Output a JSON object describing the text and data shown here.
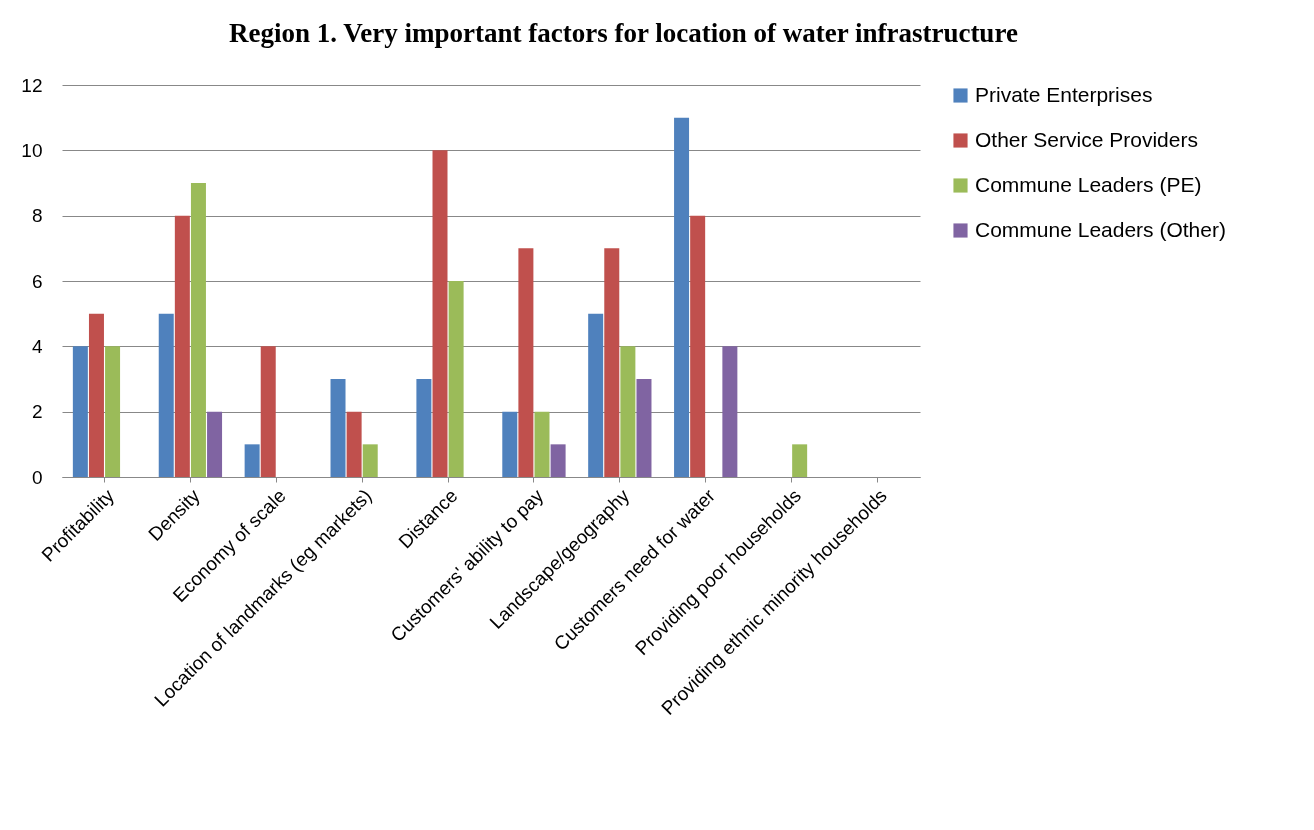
{
  "chart_data": {
    "type": "bar",
    "title": "Region 1. Very important factors for location of water infrastructure",
    "categories": [
      "Profitability",
      "Density",
      "Economy of scale",
      "Location of landmarks (eg markets)",
      "Distance",
      "Customers' ability to pay",
      "Landscape/geography",
      "Customers need for water",
      "Providing poor households",
      "Providing ethnic minority households"
    ],
    "series": [
      {
        "name": "Private Enterprises",
        "color": "#4f81bd",
        "values": [
          4,
          5,
          1,
          3,
          3,
          2,
          5,
          11,
          0,
          0
        ]
      },
      {
        "name": "Other Service Providers",
        "color": "#c0504d",
        "values": [
          5,
          8,
          4,
          2,
          10,
          7,
          7,
          8,
          0,
          0
        ]
      },
      {
        "name": "Commune Leaders (PE)",
        "color": "#9bbb59",
        "values": [
          4,
          9,
          0,
          1,
          6,
          2,
          4,
          0,
          1,
          0
        ]
      },
      {
        "name": "Commune Leaders (Other)",
        "color": "#8064a2",
        "values": [
          0,
          2,
          0,
          0,
          0,
          1,
          3,
          4,
          0,
          0
        ]
      }
    ],
    "ylim": [
      0,
      12
    ],
    "yticks": [
      0,
      2,
      4,
      6,
      8,
      10,
      12
    ],
    "grid": "y",
    "legend": "right"
  }
}
